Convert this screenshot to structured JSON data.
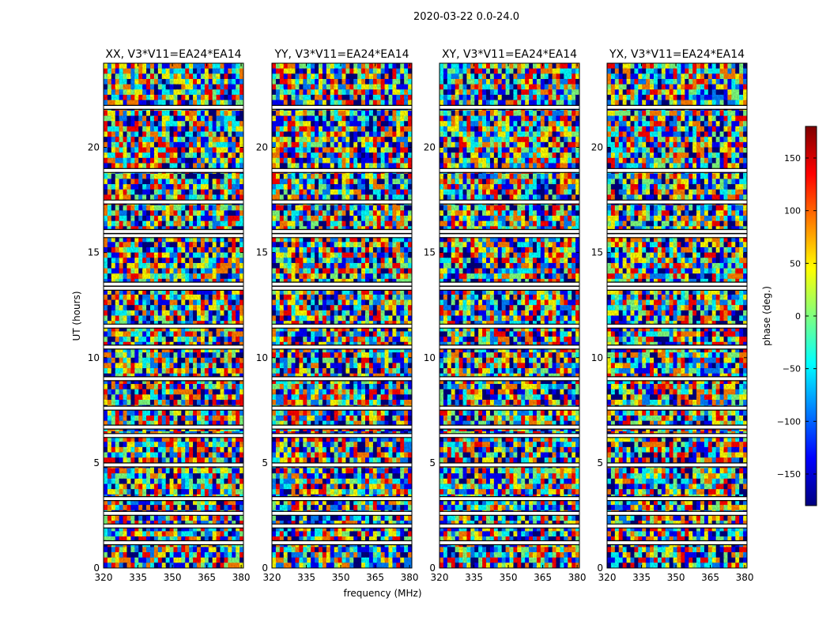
{
  "figure": {
    "suptitle": "2020-03-22 0.0-24.0",
    "xlabel": "frequency (MHz)",
    "ylabel": "UT (hours)"
  },
  "chart_data": [
    {
      "type": "heatmap",
      "title": "XX, V3*V11=EA24*EA14",
      "xlim": [
        320,
        381
      ],
      "ylim": [
        0,
        24
      ],
      "xticks": [
        320,
        335,
        350,
        365,
        380
      ],
      "yticks": [
        0,
        5,
        10,
        15,
        20
      ],
      "z_quantity": "phase (deg.)"
    },
    {
      "type": "heatmap",
      "title": "YY, V3*V11=EA24*EA14",
      "xlim": [
        320,
        381
      ],
      "ylim": [
        0,
        24
      ],
      "xticks": [
        320,
        335,
        350,
        365,
        380
      ],
      "yticks": [
        0,
        5,
        10,
        15,
        20
      ],
      "z_quantity": "phase (deg.)"
    },
    {
      "type": "heatmap",
      "title": "XY, V3*V11=EA24*EA14",
      "xlim": [
        320,
        381
      ],
      "ylim": [
        0,
        24
      ],
      "xticks": [
        320,
        335,
        350,
        365,
        380
      ],
      "yticks": [
        0,
        5,
        10,
        15,
        20
      ],
      "z_quantity": "phase (deg.)"
    },
    {
      "type": "heatmap",
      "title": "YX, V3*V11=EA24*EA14",
      "xlim": [
        320,
        381
      ],
      "ylim": [
        0,
        24
      ],
      "xticks": [
        320,
        335,
        350,
        365,
        380
      ],
      "yticks": [
        0,
        5,
        10,
        15,
        20
      ],
      "z_quantity": "phase (deg.)"
    }
  ],
  "colorbar": {
    "label": "phase (deg.)",
    "range": [
      -180,
      180
    ],
    "ticks": [
      150,
      100,
      50,
      0,
      -50,
      -100,
      -150
    ],
    "tick_labels": [
      "150",
      "100",
      "50",
      "0",
      "−50",
      "−100",
      "−150"
    ],
    "colormap": "jet",
    "stops": [
      "#00007f",
      "#0000ff",
      "#007fff",
      "#00ffff",
      "#7fff7f",
      "#ffff00",
      "#ff7f00",
      "#ff0000",
      "#7f0000"
    ]
  },
  "flagged_ut_hours": [
    1.2,
    2.0,
    2.6,
    3.3,
    4.9,
    6.3,
    6.7,
    7.6,
    9.0,
    10.5,
    11.5,
    13.3,
    13.5,
    15.8,
    16.0,
    17.4,
    18.9,
    21.9
  ]
}
